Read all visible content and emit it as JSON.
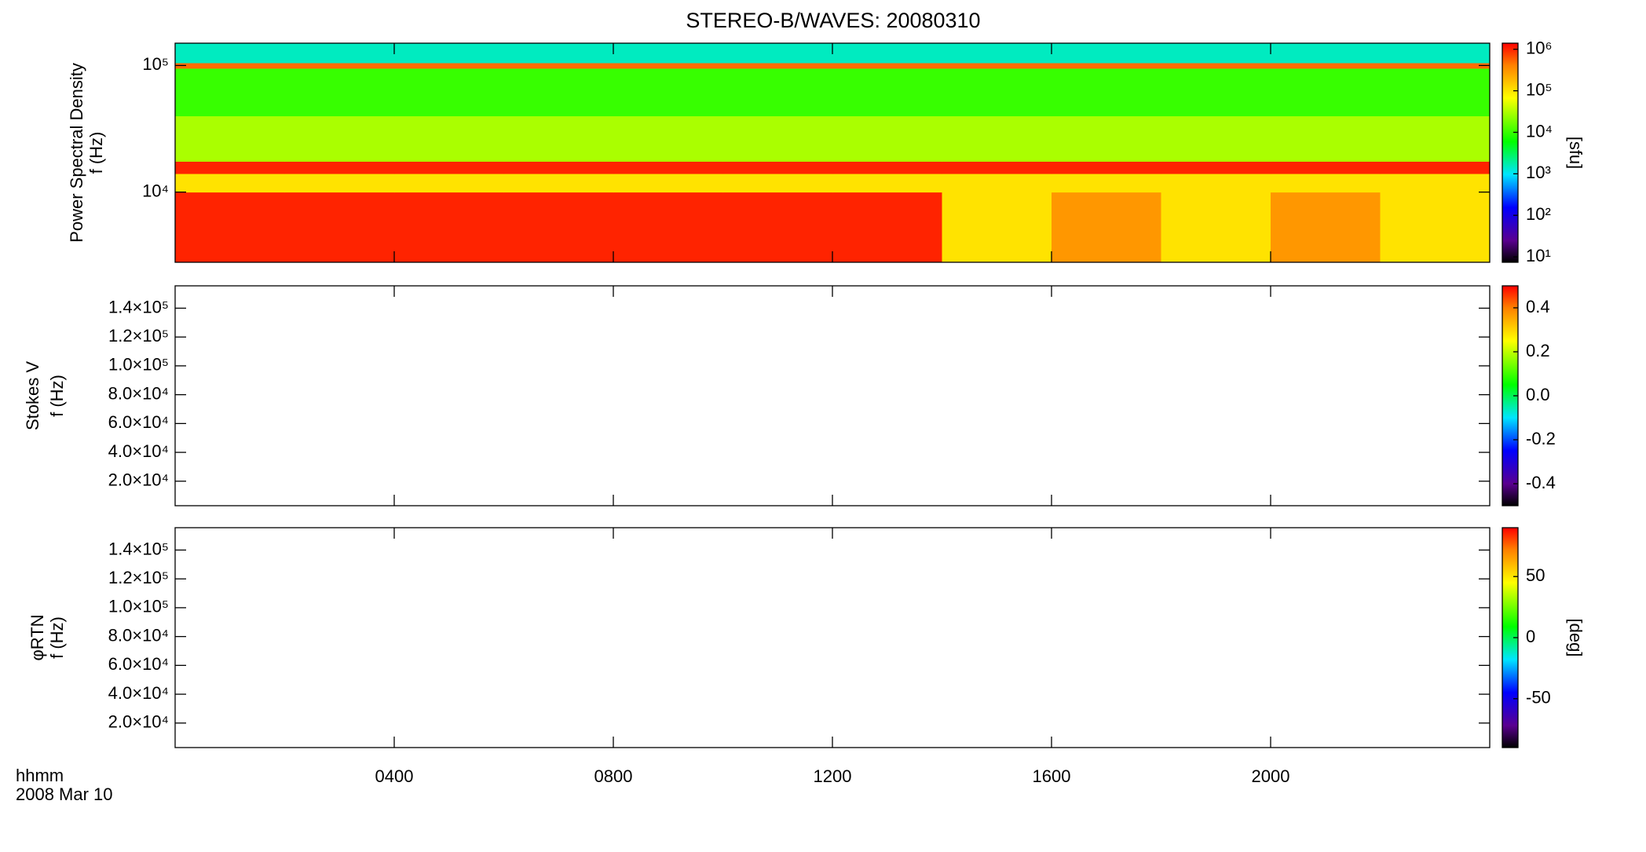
{
  "chart_data": [
    {
      "type": "heatmap",
      "title": "STEREO-B/WAVES: 20080310",
      "ylabel": [
        "Power Spectral Density",
        "f (Hz)"
      ],
      "ylog": true,
      "ylim": [
        2790,
        150000
      ],
      "yticks": [
        {
          "value": 10000,
          "label": "10⁴"
        },
        {
          "value": 100000,
          "label": "10⁵"
        }
      ],
      "zlog": true,
      "zlim": [
        7.4,
        1400000
      ],
      "zlabel": "[sfu]",
      "zticks": [
        {
          "value": 10,
          "label": "10¹"
        },
        {
          "value": 100,
          "label": "10²"
        },
        {
          "value": 1000,
          "label": "10³"
        },
        {
          "value": 10000,
          "label": "10⁴"
        },
        {
          "value": 100000,
          "label": "10⁵"
        },
        {
          "value": 1000000,
          "label": "10⁶"
        }
      ],
      "x_edges": [
        0,
        2,
        4,
        6,
        8,
        10,
        12,
        14,
        16,
        18,
        20,
        22,
        24
      ],
      "y_edges": [
        2790,
        10000,
        14000,
        17500,
        40000,
        95000,
        105000,
        150000
      ],
      "z": [
        [
          1000000,
          1000000,
          1000000,
          1000000,
          1000000,
          1000000,
          1000000,
          100000,
          300000,
          100000,
          300000,
          100000
        ],
        [
          100000,
          100000,
          100000,
          100000,
          100000,
          100000,
          100000,
          100000,
          100000,
          100000,
          100000,
          100000
        ],
        [
          1000000,
          1000000,
          1000000,
          1000000,
          1000000,
          1000000,
          1000000,
          1000000,
          1000000,
          1000000,
          1000000,
          1000000
        ],
        [
          30000,
          30000,
          30000,
          30000,
          30000,
          30000,
          30000,
          30000,
          30000,
          30000,
          30000,
          30000
        ],
        [
          10000,
          10000,
          10000,
          10000,
          10000,
          10000,
          10000,
          10000,
          10000,
          10000,
          10000,
          10000
        ],
        [
          500000,
          500000,
          500000,
          500000,
          500000,
          500000,
          500000,
          500000,
          500000,
          500000,
          500000,
          500000
        ],
        [
          1500,
          1500,
          1500,
          1500,
          1500,
          1500,
          1500,
          1500,
          1500,
          1500,
          1500,
          1500
        ]
      ]
    },
    {
      "type": "heatmap",
      "ylabel": [
        "Stokes V",
        "f (Hz)"
      ],
      "ylim": [
        3000,
        155500
      ],
      "yticks": [
        {
          "value": 20000,
          "label": "2.0×10⁴"
        },
        {
          "value": 40000,
          "label": "4.0×10⁴"
        },
        {
          "value": 60000,
          "label": "6.0×10⁴"
        },
        {
          "value": 80000,
          "label": "8.0×10⁴"
        },
        {
          "value": 100000,
          "label": "1.0×10⁵"
        },
        {
          "value": 120000,
          "label": "1.2×10⁵"
        },
        {
          "value": 140000,
          "label": "1.4×10⁵"
        }
      ],
      "zlim": [
        -0.5,
        0.5
      ],
      "zticks": [
        -0.4,
        -0.2,
        {
          "value": 0,
          "label": "0.0"
        },
        0.2,
        0.4
      ]
    },
    {
      "type": "heatmap",
      "ylabel": [
        "φRTN",
        "f (Hz)"
      ],
      "ylim": [
        3000,
        155500
      ],
      "yticks": [
        {
          "value": 20000,
          "label": "2.0×10⁴"
        },
        {
          "value": 40000,
          "label": "4.0×10⁴"
        },
        {
          "value": 60000,
          "label": "6.0×10⁴"
        },
        {
          "value": 80000,
          "label": "8.0×10⁴"
        },
        {
          "value": 100000,
          "label": "1.0×10⁵"
        },
        {
          "value": 120000,
          "label": "1.2×10⁵"
        },
        {
          "value": 140000,
          "label": "1.4×10⁵"
        }
      ],
      "zlim": [
        -90,
        90
      ],
      "zticks": [
        -50,
        0,
        50
      ],
      "zlabel": "[deg]",
      "xlim": [
        0,
        24
      ],
      "xticks": [
        {
          "value": 4,
          "label": "0400"
        },
        {
          "value": 8,
          "label": "0800"
        },
        {
          "value": 12,
          "label": "1200"
        },
        {
          "value": 16,
          "label": "1600"
        },
        {
          "value": 20,
          "label": "2000"
        }
      ],
      "xlabel": "hhmm",
      "date": "2008 Mar 10"
    }
  ]
}
